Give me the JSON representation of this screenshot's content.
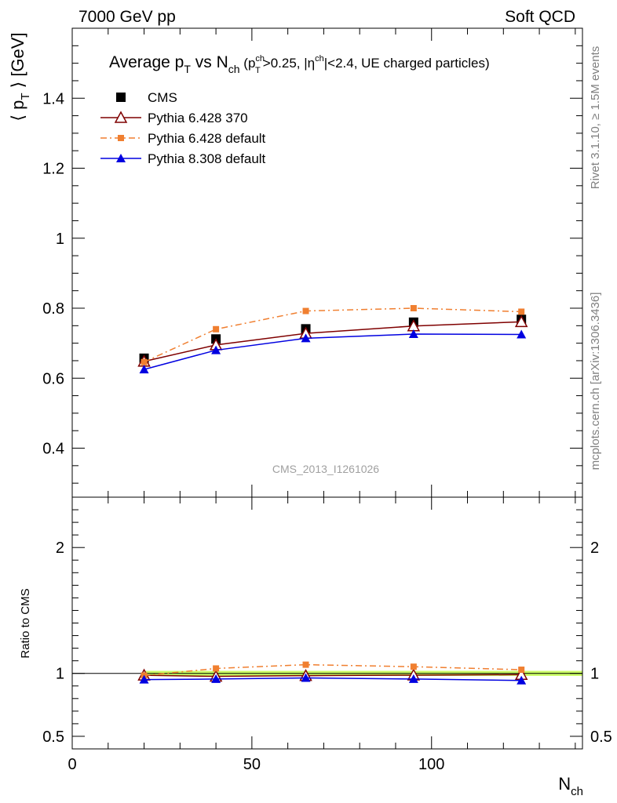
{
  "header": {
    "left": "7000 GeV pp",
    "right": "Soft QCD"
  },
  "side_labels": {
    "rivet": "Rivet 3.1.10, ≥ 1.5M events",
    "mcplots": "mcplots.cern.ch [arXiv:1306.3436]"
  },
  "chart_data": [
    {
      "type": "line",
      "panel": "main",
      "title": "Average pT vs Nch (pTch>0.25, |ηch|<2.4, UE charged particles)",
      "title_parts": {
        "a": "Average p",
        "a_sub": "T",
        "b": " vs N",
        "b_sub": "ch",
        "c": " (p",
        "c_sup": "ch",
        "c_sub": "T",
        "d": ">0.25, |η",
        "d_sup": "ch",
        "e": "|<2.4, UE charged particles)"
      },
      "ylabel": "⟨ pT ⟩ [GeV]",
      "ylabel_parts": {
        "lang": "⟨ p",
        "sub": "T",
        "rang": " ⟩ [GeV]"
      },
      "xlabel": "",
      "xlim": [
        0,
        142
      ],
      "ylim": [
        0.26,
        1.6
      ],
      "y_ticks": [
        0.4,
        0.6,
        0.8,
        1,
        1.2,
        1.4
      ],
      "y_tick_labels": [
        "0.4",
        "0.6",
        "0.8",
        "1",
        "1.2",
        "1.4"
      ],
      "watermark": "CMS_2013_I1261026",
      "legend_position": "top-left",
      "x": [
        20,
        40,
        65,
        95,
        125
      ],
      "series": [
        {
          "name": "CMS",
          "values": [
            0.657,
            0.712,
            0.741,
            0.76,
            0.768
          ],
          "color": "#000000",
          "marker": "square",
          "line": "none"
        },
        {
          "name": "Pythia 6.428 370",
          "values": [
            0.648,
            0.695,
            0.728,
            0.749,
            0.761
          ],
          "color": "#7f0000",
          "marker": "triangle-open",
          "line": "solid"
        },
        {
          "name": "Pythia 6.428 default",
          "values": [
            0.646,
            0.74,
            0.792,
            0.8,
            0.79
          ],
          "color": "#f07f30",
          "marker": "square-small",
          "line": "dashdot"
        },
        {
          "name": "Pythia 8.308 default",
          "values": [
            0.625,
            0.68,
            0.714,
            0.726,
            0.725
          ],
          "color": "#0000e0",
          "marker": "triangle",
          "line": "solid"
        }
      ]
    },
    {
      "type": "line",
      "panel": "ratio",
      "ylabel": "Ratio to CMS",
      "xlabel": "Nch",
      "xlabel_parts": {
        "main": "N",
        "sub": "ch"
      },
      "xlim": [
        0,
        142
      ],
      "ylim": [
        0.4,
        2.4
      ],
      "y_ticks": [
        0.5,
        1,
        2
      ],
      "y_tick_labels": [
        "0.5",
        "1",
        "2"
      ],
      "x_ticks": [
        0,
        50,
        100
      ],
      "x_tick_labels": [
        "0",
        "50",
        "100"
      ],
      "band": {
        "from": 10,
        "to": 142,
        "low": 0.98,
        "high": 1.02,
        "color": "#ccff66"
      },
      "x": [
        20,
        40,
        65,
        95,
        125
      ],
      "series": [
        {
          "name": "Pythia 6.428 370",
          "values": [
            0.985,
            0.976,
            0.982,
            0.986,
            0.99
          ],
          "color": "#7f0000",
          "marker": "triangle-open",
          "line": "solid"
        },
        {
          "name": "Pythia 6.428 default",
          "values": [
            0.983,
            1.039,
            1.069,
            1.053,
            1.029
          ],
          "color": "#f07f30",
          "marker": "square-small",
          "line": "dashdot"
        },
        {
          "name": "Pythia 8.308 default",
          "values": [
            0.951,
            0.955,
            0.964,
            0.955,
            0.944
          ],
          "color": "#0000e0",
          "marker": "triangle",
          "line": "solid"
        }
      ]
    }
  ]
}
